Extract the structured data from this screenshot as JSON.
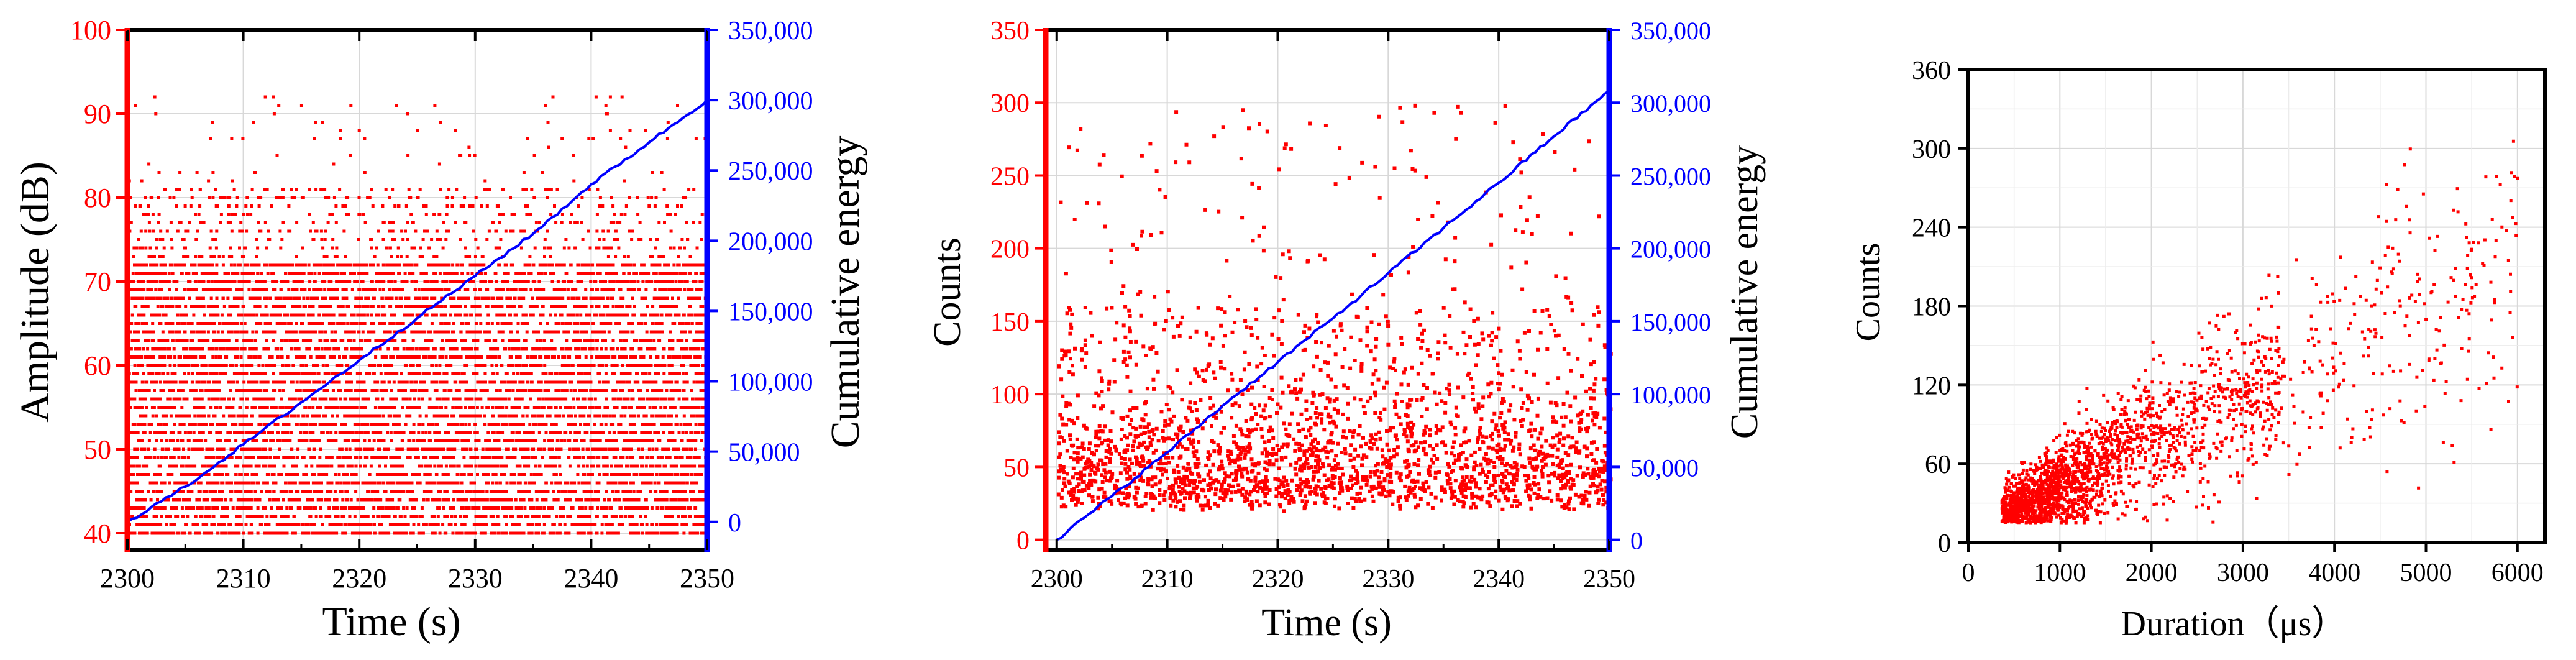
{
  "chart_data": [
    {
      "type": "scatter",
      "xlabel": "Time (s)",
      "ylabel": "Amplitude (dB)",
      "y2label": "Cumulative energy",
      "xlim": [
        2300,
        2350
      ],
      "ylim": [
        38,
        100
      ],
      "y2lim": [
        -20000,
        350000
      ],
      "x_ticks": [
        2300,
        2310,
        2320,
        2330,
        2340,
        2350
      ],
      "x_tick_labels": [
        "2300",
        "2310",
        "2320",
        "2330",
        "2340",
        "2350"
      ],
      "y_ticks": [
        40,
        50,
        60,
        70,
        80,
        90,
        100
      ],
      "y_tick_labels": [
        "40",
        "50",
        "60",
        "70",
        "80",
        "90",
        "100"
      ],
      "y2_ticks": [
        0,
        50000,
        100000,
        150000,
        200000,
        250000,
        300000,
        350000
      ],
      "y2_tick_labels": [
        "0",
        "50,000",
        "100,000",
        "150,000",
        "200,000",
        "250,000",
        "300,000",
        "350,000"
      ],
      "grid": true,
      "colors": {
        "left_axis": "#ff0000",
        "right_axis": "#0000ff",
        "points": "#ff0000",
        "line": "#0000ff"
      },
      "series": [
        {
          "kind": "scatter",
          "axis": "left",
          "description_points": "dense banded points 40-72 dB, sparse up to ~92 dB",
          "approx_count": 9000
        },
        {
          "kind": "line",
          "axis": "right",
          "x": [
            2300,
            2305,
            2310,
            2315,
            2320,
            2325,
            2330,
            2335,
            2340,
            2345,
            2350
          ],
          "values": [
            0,
            25000,
            55000,
            85000,
            115000,
            145000,
            175000,
            205000,
            240000,
            270000,
            300000
          ]
        }
      ]
    },
    {
      "type": "scatter",
      "xlabel": "Time (s)",
      "ylabel": "Counts",
      "y2label": "Cumulative energy",
      "xlim": [
        2299,
        2350
      ],
      "ylim": [
        -7,
        350
      ],
      "y2lim": [
        -7000,
        350000
      ],
      "x_ticks": [
        2300,
        2310,
        2320,
        2330,
        2340,
        2350
      ],
      "x_tick_labels": [
        "2300",
        "2310",
        "2320",
        "2330",
        "2340",
        "2350"
      ],
      "y_ticks": [
        0,
        50,
        100,
        150,
        200,
        250,
        300,
        350
      ],
      "y_tick_labels": [
        "0",
        "50",
        "100",
        "150",
        "200",
        "250",
        "300",
        "350"
      ],
      "y2_ticks": [
        0,
        50000,
        100000,
        150000,
        200000,
        250000,
        300000,
        350000
      ],
      "y2_tick_labels": [
        "0",
        "50,000",
        "100,000",
        "150,000",
        "200,000",
        "250,000",
        "300,000",
        "350,000"
      ],
      "grid": true,
      "colors": {
        "left_axis": "#ff0000",
        "right_axis": "#0000ff",
        "points": "#ff0000",
        "line": "#0000ff"
      },
      "series": [
        {
          "kind": "scatter",
          "axis": "left",
          "description_points": "dense cloud 20-100 counts, sparse up to ~305",
          "approx_count": 9000
        },
        {
          "kind": "line",
          "axis": "right",
          "x": [
            2300,
            2305,
            2310,
            2315,
            2320,
            2325,
            2330,
            2335,
            2340,
            2345,
            2350
          ],
          "values": [
            0,
            30000,
            60000,
            92000,
            122000,
            152000,
            183000,
            214000,
            245000,
            277000,
            308000
          ]
        }
      ]
    },
    {
      "type": "scatter",
      "xlabel": "Duration（μs）",
      "ylabel": "Counts",
      "xlim": [
        0,
        6300
      ],
      "ylim": [
        0,
        360
      ],
      "x_ticks": [
        0,
        1000,
        2000,
        3000,
        4000,
        5000,
        6000
      ],
      "x_tick_labels": [
        "0",
        "1000",
        "2000",
        "3000",
        "4000",
        "5000",
        "6000"
      ],
      "y_ticks": [
        0,
        60,
        120,
        180,
        240,
        300,
        360
      ],
      "y_tick_labels": [
        "0",
        "60",
        "120",
        "180",
        "240",
        "300",
        "360"
      ],
      "grid": true,
      "colors": {
        "axis": "#000000",
        "points": "#ff0000"
      },
      "series": [
        {
          "kind": "scatter",
          "description_points": "positively correlated cloud: counts ≈ 10 + 0.033 × duration with spread",
          "approx_count": 9000
        }
      ]
    }
  ]
}
